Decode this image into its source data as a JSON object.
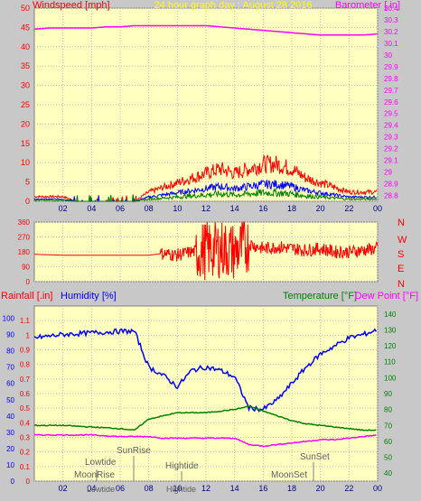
{
  "header": {
    "left_label": "Windspeed [mph]",
    "center_label": "24 hour graph day : August 28 2016",
    "right_label": "Barometer [.in]"
  },
  "x_ticks": [
    "02",
    "04",
    "06",
    "08",
    "10",
    "12",
    "14",
    "16",
    "18",
    "20",
    "22",
    "00"
  ],
  "wind_dir_letters": [
    "N",
    "W",
    "S",
    "E",
    "N"
  ],
  "bottom_titles": {
    "rainfall": "Rainfall [.in]",
    "humidity": "Humidity [%]",
    "temperature": "Temperature [°F]",
    "dewpoint": "Dew Point [°F]"
  },
  "events": {
    "lowtide": "Lowtide",
    "moonrise": "MoonRise",
    "lowtide2": "Lowtide",
    "sunrise": "SunRise",
    "hightide": "Hightide",
    "hightide2": "Hightide",
    "moonset": "MoonSet",
    "sunset": "SunSet"
  },
  "colors": {
    "background": "#c8c8c8",
    "plot_bg": "#ffffc0",
    "wind_gust": "#ff0000",
    "wind_avg": "#0000ff",
    "wind_low": "#008000",
    "barometer": "#ff00ff",
    "humidity": "#0000ff",
    "temperature": "#008000",
    "dewpoint": "#ff00ff",
    "title_yellow": "#ffff00"
  },
  "chart_data": [
    {
      "type": "line",
      "x": [
        0,
        1,
        2,
        3,
        4,
        5,
        6,
        7,
        8,
        9,
        10,
        11,
        12,
        13,
        14,
        15,
        16,
        17,
        18,
        19,
        20,
        21,
        22,
        23,
        24
      ],
      "series": [
        {
          "name": "Windspeed [mph]",
          "values": [
            1,
            1,
            1,
            0,
            0,
            0,
            0,
            0,
            2,
            3,
            4,
            5,
            6,
            7,
            6,
            7,
            8,
            8,
            7,
            5,
            4,
            3,
            2,
            2,
            2
          ]
        },
        {
          "name": "Barometer [.in]",
          "values": [
            30.22,
            30.23,
            30.23,
            30.23,
            30.23,
            30.24,
            30.24,
            30.25,
            30.25,
            30.25,
            30.25,
            30.25,
            30.25,
            30.24,
            30.23,
            30.22,
            30.21,
            30.2,
            30.19,
            30.18,
            30.17,
            30.17,
            30.17,
            30.17,
            30.18
          ]
        }
      ],
      "title": "24 hour graph day : August 28 2016",
      "ylabel": "Windspeed [mph]",
      "y2label": "Barometer [.in]",
      "ylim": [
        0,
        50
      ],
      "y2lim": [
        28.75,
        30.4
      ],
      "y_ticks": [
        "0",
        "5",
        "10",
        "15",
        "20",
        "25",
        "30",
        "35",
        "40",
        "45",
        "50"
      ],
      "y2_ticks": [
        "28.8",
        "28.9",
        "29",
        "29.1",
        "29.2",
        "29.3",
        "29.4",
        "29.5",
        "29.6",
        "29.7",
        "29.8",
        "29.9",
        "30",
        "30.1",
        "30.2",
        "30.3",
        "30.4"
      ],
      "grid": true
    },
    {
      "type": "line",
      "x": [
        0,
        2,
        4,
        6,
        8,
        9,
        10,
        11,
        12,
        13,
        14,
        15,
        16,
        17,
        18,
        19,
        20,
        21,
        22,
        23,
        24
      ],
      "series": [
        {
          "name": "Wind direction",
          "values": [
            165,
            160,
            160,
            160,
            160,
            170,
            160,
            180,
            190,
            200,
            180,
            230,
            200,
            210,
            200,
            190,
            200,
            180,
            180,
            190,
            200
          ]
        }
      ],
      "ylim": [
        0,
        360
      ],
      "y_ticks": [
        "0",
        "90",
        "180",
        "270",
        "360"
      ],
      "grid": true
    },
    {
      "type": "line",
      "x": [
        0,
        2,
        4,
        6,
        7,
        8,
        9,
        10,
        11,
        12,
        13,
        14,
        15,
        16,
        17,
        18,
        19,
        20,
        21,
        22,
        23,
        24
      ],
      "series": [
        {
          "name": "Humidity [%]",
          "values": [
            88,
            90,
            91,
            92,
            92,
            70,
            65,
            58,
            68,
            70,
            68,
            64,
            45,
            44,
            50,
            60,
            70,
            78,
            83,
            88,
            90,
            93
          ]
        },
        {
          "name": "Temperature [°F]",
          "values": [
            70,
            70,
            69,
            68,
            67,
            74,
            76,
            78,
            78,
            78,
            79,
            80,
            82,
            79,
            76,
            73,
            71,
            70,
            69,
            68,
            67,
            67
          ]
        },
        {
          "name": "Dew Point [°F]",
          "values": [
            64,
            64,
            64,
            63,
            63,
            63,
            62,
            62,
            62,
            62,
            62,
            62,
            58,
            57,
            58,
            59,
            60,
            61,
            61,
            62,
            63,
            64
          ]
        }
      ],
      "ylabel": "Rainfall [.in]",
      "ylim": [
        0,
        1.2
      ],
      "humidity_lim": [
        0,
        100
      ],
      "temp_lim": [
        35,
        145
      ],
      "y_ticks": [
        "0",
        "0.1",
        "0.2",
        "0.3",
        "0.4",
        "0.5",
        "0.6",
        "0.7",
        "0.8",
        "0.9",
        "1",
        "1.1"
      ],
      "humidity_ticks": [
        "0",
        "10",
        "20",
        "30",
        "40",
        "50",
        "60",
        "70",
        "80",
        "90",
        "100"
      ],
      "temp_ticks": [
        "40",
        "50",
        "60",
        "70",
        "80",
        "90",
        "100",
        "110",
        "120",
        "130",
        "140"
      ],
      "grid": true
    }
  ]
}
